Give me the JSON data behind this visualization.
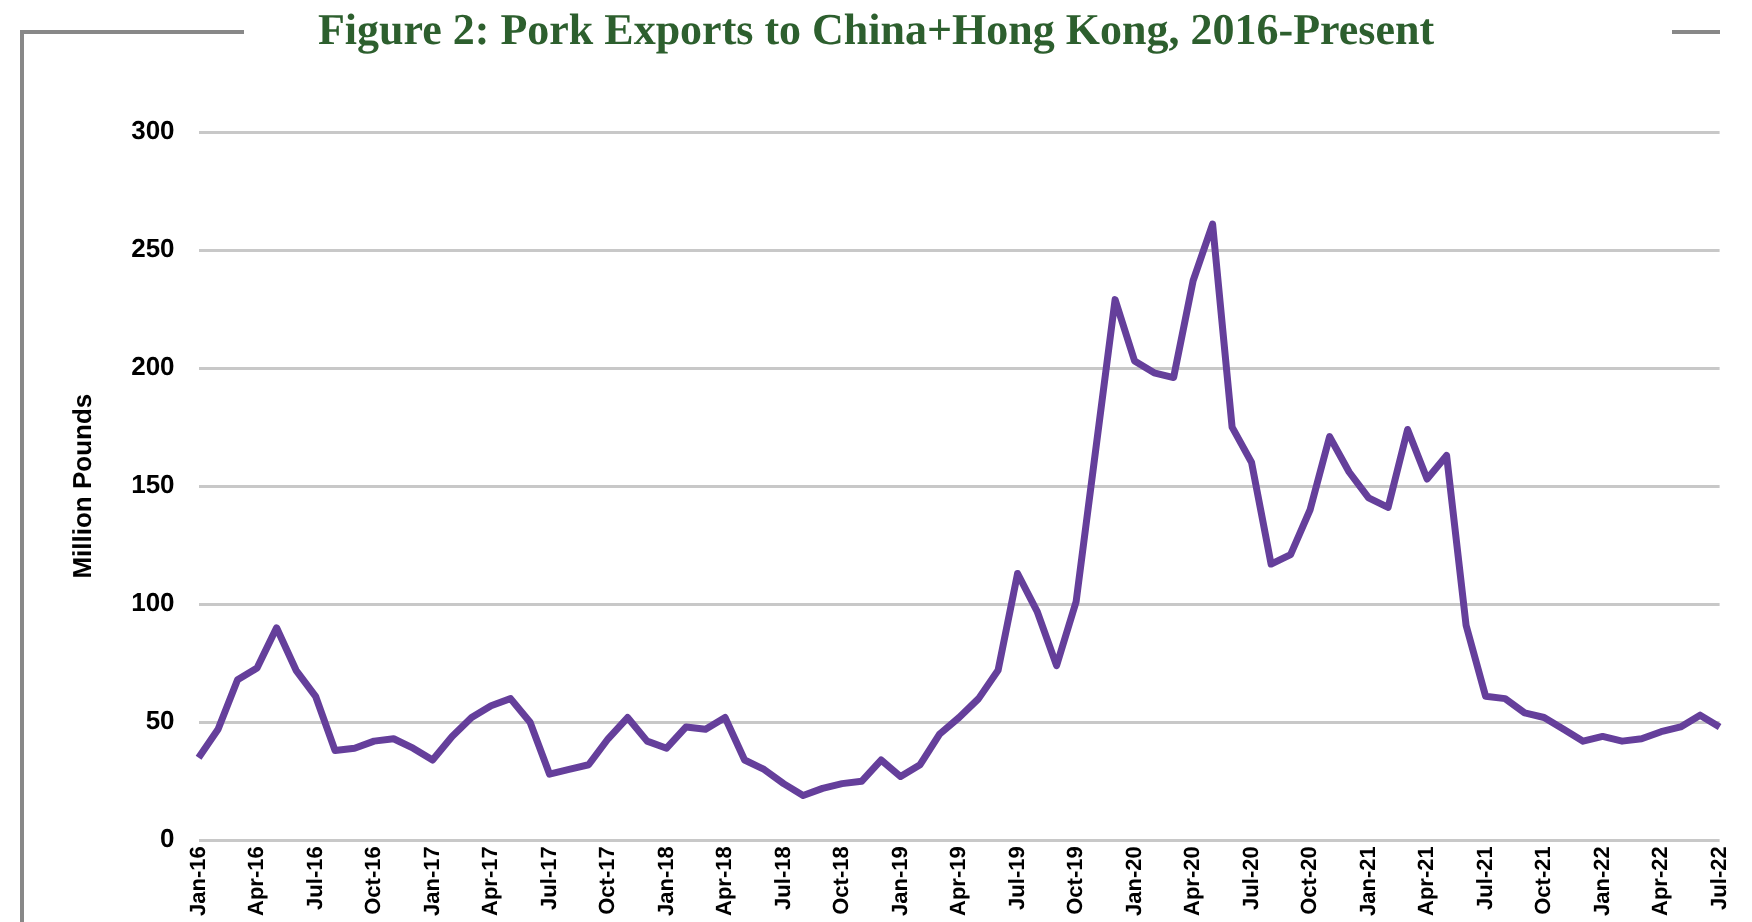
{
  "chart_data": {
    "type": "line",
    "title": "Figure 2: Pork Exports to China+Hong Kong, 2016-Present",
    "ylabel": "Million Pounds",
    "categories": [
      "Jan-16",
      null,
      null,
      "Apr-16",
      null,
      null,
      "Jul-16",
      null,
      null,
      "Oct-16",
      null,
      null,
      "Jan-17",
      null,
      null,
      "Apr-17",
      null,
      null,
      "Jul-17",
      null,
      null,
      "Oct-17",
      null,
      null,
      "Jan-18",
      null,
      null,
      "Apr-18",
      null,
      null,
      "Jul-18",
      null,
      null,
      "Oct-18",
      null,
      null,
      "Jan-19",
      null,
      null,
      "Apr-19",
      null,
      null,
      "Jul-19",
      null,
      null,
      "Oct-19",
      null,
      null,
      "Jan-20",
      null,
      null,
      "Apr-20",
      null,
      null,
      "Jul-20",
      null,
      null,
      "Oct-20",
      null,
      null,
      "Jan-21",
      null,
      null,
      "Apr-21",
      null,
      null,
      "Jul-21",
      null,
      null,
      "Oct-21",
      null,
      null,
      "Jan-22",
      null,
      null,
      "Apr-22",
      null,
      null,
      "Jul-22"
    ],
    "series": [
      {
        "color": "#653f9b",
        "values": [
          35,
          47,
          68,
          73,
          90,
          72,
          61,
          38,
          39,
          42,
          43,
          39,
          34,
          44,
          52,
          57,
          60,
          50,
          28,
          30,
          32,
          43,
          52,
          42,
          39,
          48,
          47,
          52,
          34,
          30,
          24,
          19,
          22,
          24,
          25,
          34,
          27,
          32,
          45,
          52,
          60,
          72,
          113,
          97,
          74,
          101,
          165,
          229,
          203,
          198,
          196,
          237,
          261,
          175,
          160,
          117,
          121,
          140,
          171,
          156,
          145,
          141,
          174,
          153,
          163,
          91,
          61,
          60,
          54,
          52,
          47,
          42,
          44,
          42,
          43,
          46,
          48,
          53,
          48
        ]
      }
    ],
    "ylim": [
      0,
      300
    ],
    "yticks": [
      0,
      50,
      100,
      150,
      200,
      250,
      300
    ],
    "grid": "y",
    "legend": false,
    "marker": "none",
    "line_style": "solid"
  }
}
